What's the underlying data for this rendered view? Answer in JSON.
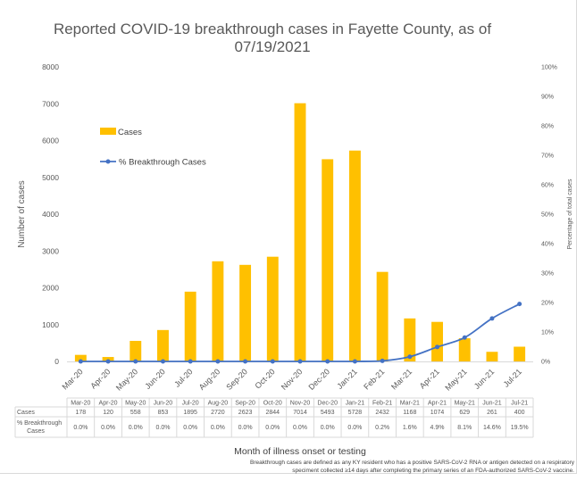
{
  "chart_data": {
    "type": "bar",
    "title_lines": [
      "Reported COVID-19 breakthrough cases in Fayette County, as of",
      "07/19/2021"
    ],
    "categories": [
      "Mar-20",
      "Apr-20",
      "May-20",
      "Jun-20",
      "Jul-20",
      "Aug-20",
      "Sep-20",
      "Oct-20",
      "Nov-20",
      "Dec-20",
      "Jan-21",
      "Feb-21",
      "Mar-21",
      "Apr-21",
      "May-21",
      "Jun-21",
      "Jul-21"
    ],
    "series": [
      {
        "name": "Cases",
        "kind": "bar",
        "axis": "left",
        "color": "#ffc000",
        "values": [
          178,
          120,
          558,
          853,
          1895,
          2720,
          2623,
          2844,
          7014,
          5493,
          5728,
          2432,
          1168,
          1074,
          629,
          261,
          400
        ]
      },
      {
        "name": "% Breakthrough Cases",
        "kind": "line",
        "axis": "right",
        "color": "#4472c4",
        "values": [
          0.0,
          0.0,
          0.0,
          0.0,
          0.0,
          0.0,
          0.0,
          0.0,
          0.0,
          0.0,
          0.0,
          0.2,
          1.6,
          4.9,
          8.1,
          14.6,
          19.5
        ],
        "labels": [
          "0.0%",
          "0.0%",
          "0.0%",
          "0.0%",
          "0.0%",
          "0.0%",
          "0.0%",
          "0.0%",
          "0.0%",
          "0.0%",
          "0.0%",
          "0.2%",
          "1.6%",
          "4.9%",
          "8.1%",
          "14.6%",
          "19.5%"
        ]
      }
    ],
    "ylabel": "Number of cases",
    "ylim": [
      0,
      8000
    ],
    "yticks": [
      "0",
      "1000",
      "2000",
      "3000",
      "4000",
      "5000",
      "6000",
      "7000",
      "8000"
    ],
    "y2label": "Percentage of total cases",
    "y2lim": [
      0,
      100
    ],
    "y2ticks": [
      "0%",
      "10%",
      "20%",
      "30%",
      "40%",
      "50%",
      "60%",
      "70%",
      "80%",
      "90%",
      "100%"
    ],
    "xlabel": "Month of illness onset or testing",
    "legend_position": "upper-left inside",
    "grid": false,
    "table_row_labels": [
      "Cases",
      "% Breakthrough Cases"
    ],
    "footnote_lines": [
      "Breakthrough cases are defined as any KY resident who has a positive SARS-CoV-2 RNA or antigen detected on a respiratory",
      "speciment collected ≥14 days after completing the primary series of an FDA-authorized SARS-CoV-2 vaccine."
    ]
  }
}
